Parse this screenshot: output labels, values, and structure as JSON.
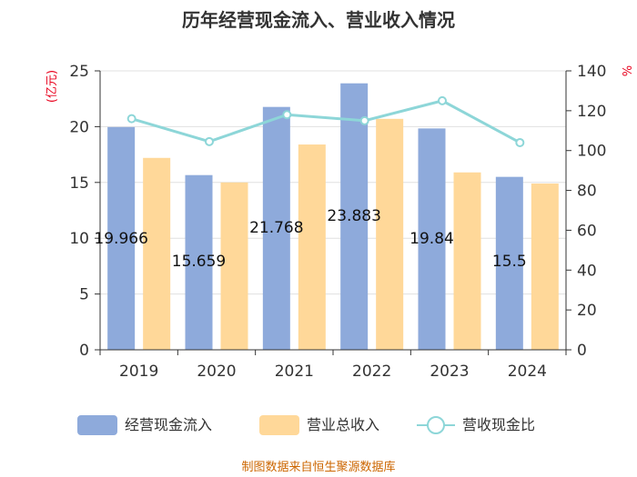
{
  "chart_data": {
    "type": "bar",
    "title": "历年经营现金流入、营业收入情况",
    "categories": [
      "2019",
      "2020",
      "2021",
      "2022",
      "2023",
      "2024"
    ],
    "series": [
      {
        "name": "经营现金流入",
        "type": "bar",
        "axis": "left",
        "color": "#8eaadb",
        "values": [
          19.966,
          15.659,
          21.768,
          23.883,
          19.84,
          15.5
        ],
        "labels": [
          "19.966",
          "15.659",
          "21.768",
          "23.883",
          "19.84",
          "15.5"
        ]
      },
      {
        "name": "营业总收入",
        "type": "bar",
        "axis": "left",
        "color": "#ffd899",
        "values": [
          17.2,
          15.0,
          18.4,
          20.7,
          15.9,
          14.9
        ]
      },
      {
        "name": "营收现金比",
        "type": "line",
        "axis": "right",
        "color": "#8dd6d8",
        "values": [
          116,
          104.5,
          118,
          115,
          125,
          104
        ]
      }
    ],
    "y_left": {
      "unit": "(亿元)",
      "ylim": [
        0,
        25
      ],
      "ticks": [
        "0",
        "5",
        "10",
        "15",
        "20",
        "25"
      ],
      "unit_color": "#e8001c"
    },
    "y_right": {
      "unit": "%",
      "ylim": [
        0,
        140
      ],
      "ticks": [
        "0",
        "20",
        "40",
        "60",
        "80",
        "100",
        "120",
        "140"
      ],
      "unit_color": "#e8001c"
    },
    "grid": true,
    "legend_position": "bottom",
    "source": "制图数据来自恒生聚源数据库",
    "source_color": "#cc6600"
  }
}
